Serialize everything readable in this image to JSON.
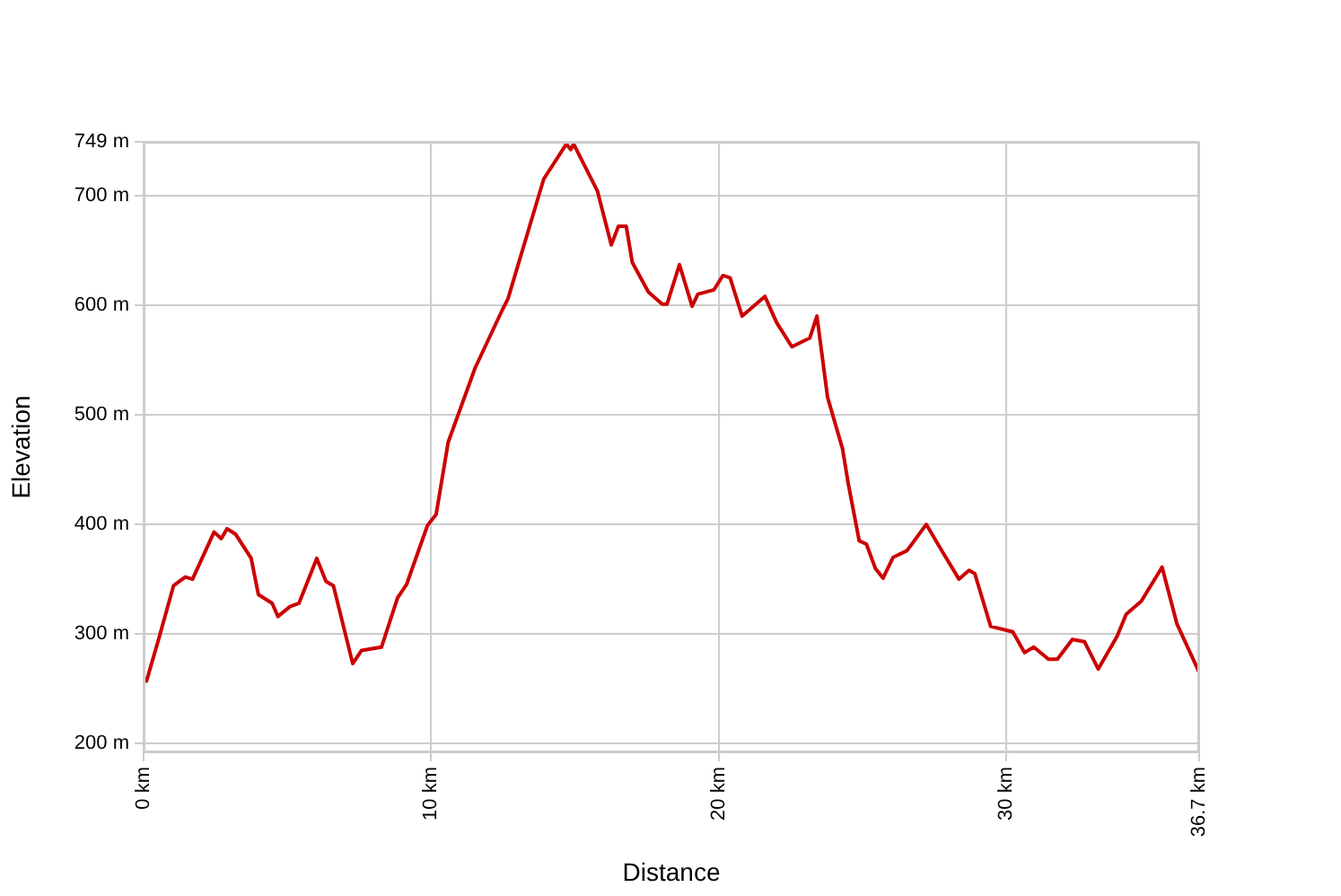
{
  "chart_data": {
    "type": "line",
    "xlabel": "Distance",
    "ylabel": "Elevation",
    "xlim": [
      0,
      36.7
    ],
    "ylim": [
      192,
      749
    ],
    "xticks": [
      {
        "value": 0,
        "label": "0 km"
      },
      {
        "value": 10,
        "label": "10 km"
      },
      {
        "value": 20,
        "label": "20 km"
      },
      {
        "value": 30,
        "label": "30 km"
      },
      {
        "value": 36.7,
        "label": "36.7 km"
      }
    ],
    "yticks": [
      {
        "value": 200,
        "label": "200 m"
      },
      {
        "value": 300,
        "label": "300 m"
      },
      {
        "value": 400,
        "label": "400 m"
      },
      {
        "value": 500,
        "label": "500 m"
      },
      {
        "value": 600,
        "label": "600 m"
      },
      {
        "value": 700,
        "label": "700 m"
      },
      {
        "value": 749,
        "label": "749 m"
      }
    ],
    "grid": true,
    "marker": "none",
    "line_style": "solid",
    "legend": false,
    "series": [
      {
        "color": "#cc0000",
        "x": [
          0.1,
          0.52,
          1.04,
          1.45,
          1.7,
          2.45,
          2.7,
          2.9,
          3.2,
          3.74,
          3.99,
          4.47,
          4.67,
          5.09,
          5.4,
          6.02,
          6.34,
          6.6,
          7.27,
          7.58,
          8.27,
          8.83,
          9.14,
          9.87,
          10.17,
          10.59,
          11.53,
          12.46,
          12.67,
          13.91,
          14.7,
          14.85,
          14.95,
          15.78,
          16.26,
          16.51,
          16.78,
          16.99,
          17.55,
          18.03,
          18.2,
          18.63,
          19.07,
          19.27,
          19.83,
          20.14,
          20.39,
          20.81,
          21.6,
          22.01,
          22.54,
          23.16,
          23.41,
          23.78,
          24.3,
          24.5,
          24.88,
          25.13,
          25.44,
          25.71,
          26.06,
          26.54,
          27.21,
          27.73,
          28.35,
          28.7,
          28.9,
          29.45,
          30.22,
          30.63,
          30.95,
          31.46,
          31.77,
          32.29,
          32.71,
          33.19,
          33.85,
          34.16,
          34.69,
          35.41,
          35.93,
          36.7
        ],
        "values": [
          257,
          295,
          344,
          352,
          350,
          393,
          387,
          396,
          391,
          369,
          336,
          328,
          316,
          325,
          328,
          369,
          348,
          344,
          273,
          285,
          288,
          333,
          345,
          399,
          409,
          475,
          543,
          595,
          606,
          715,
          747,
          742,
          747,
          704,
          655,
          672,
          672,
          639,
          612,
          601,
          601,
          637,
          599,
          610,
          614,
          627,
          625,
          590,
          608,
          584,
          562,
          570,
          590,
          516,
          469,
          437,
          385,
          382,
          360,
          351,
          370,
          376,
          400,
          377,
          350,
          358,
          355,
          307,
          302,
          283,
          288,
          277,
          277,
          295,
          293,
          268,
          298,
          318,
          330,
          361,
          309,
          265
        ]
      }
    ]
  }
}
